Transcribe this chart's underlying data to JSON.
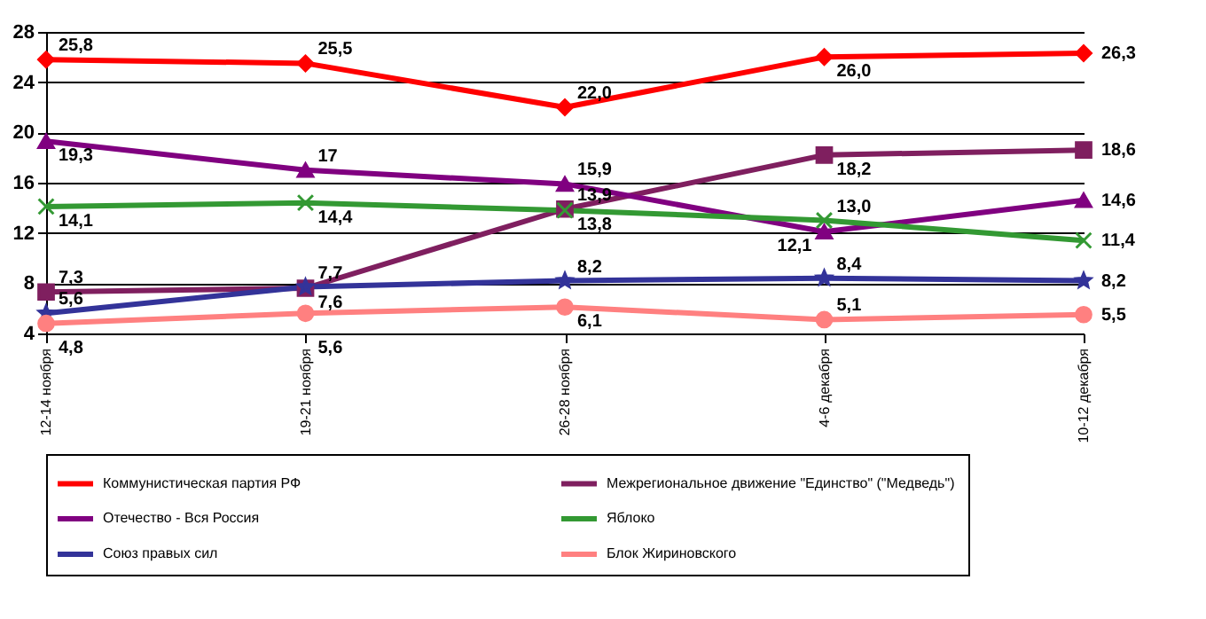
{
  "chart_data": {
    "type": "line",
    "categories": [
      "12-14 ноября",
      "19-21 ноября",
      "26-28 ноября",
      "4-6 декабря",
      "10-12 декабря"
    ],
    "ylim": [
      4,
      28
    ],
    "yticks": [
      4,
      8,
      12,
      16,
      20,
      24,
      28
    ],
    "grid": "y",
    "legend": "bottom",
    "line_style": "solid",
    "series": [
      {
        "name": "Коммунистическая партия РФ",
        "color": "#ff0000",
        "marker": "diamond",
        "values": [
          25.8,
          25.5,
          22.0,
          26.0,
          26.3
        ],
        "value_labels": [
          "25,8",
          "25,5",
          "22,0",
          "26,0",
          "26,3"
        ]
      },
      {
        "name": "Межрегиональное  движение \"Единство\" (\"Медведь\")",
        "color": "#7f1f5f",
        "marker": "square",
        "values": [
          7.3,
          7.6,
          13.9,
          18.2,
          18.6
        ],
        "value_labels": [
          "7,3",
          "7,6",
          "13,9",
          "18,2",
          "18,6"
        ]
      },
      {
        "name": "Отечество - Вся Россия",
        "color": "#800080",
        "marker": "triangle",
        "values": [
          19.3,
          17,
          15.9,
          12.1,
          14.6
        ],
        "value_labels": [
          "19,3",
          "17",
          "15,9",
          "12,1",
          "14,6"
        ]
      },
      {
        "name": "Яблоко",
        "color": "#339933",
        "marker": "cross",
        "values": [
          14.1,
          14.4,
          13.8,
          13.0,
          11.4
        ],
        "value_labels": [
          "14,1",
          "14,4",
          "13,8",
          "13,0",
          "11,4"
        ]
      },
      {
        "name": "Союз правых сил",
        "color": "#333399",
        "marker": "star",
        "values": [
          5.6,
          7.7,
          8.2,
          8.4,
          8.2
        ],
        "value_labels": [
          "5,6",
          "7,7",
          "8,2",
          "8,4",
          "8,2"
        ]
      },
      {
        "name": "Блок Жириновского",
        "color": "#ff8080",
        "marker": "circle",
        "values": [
          4.8,
          5.6,
          6.1,
          5.1,
          5.5
        ],
        "value_labels": [
          "4,8",
          "5,6",
          "6,1",
          "5,1",
          "5,5"
        ]
      }
    ]
  }
}
